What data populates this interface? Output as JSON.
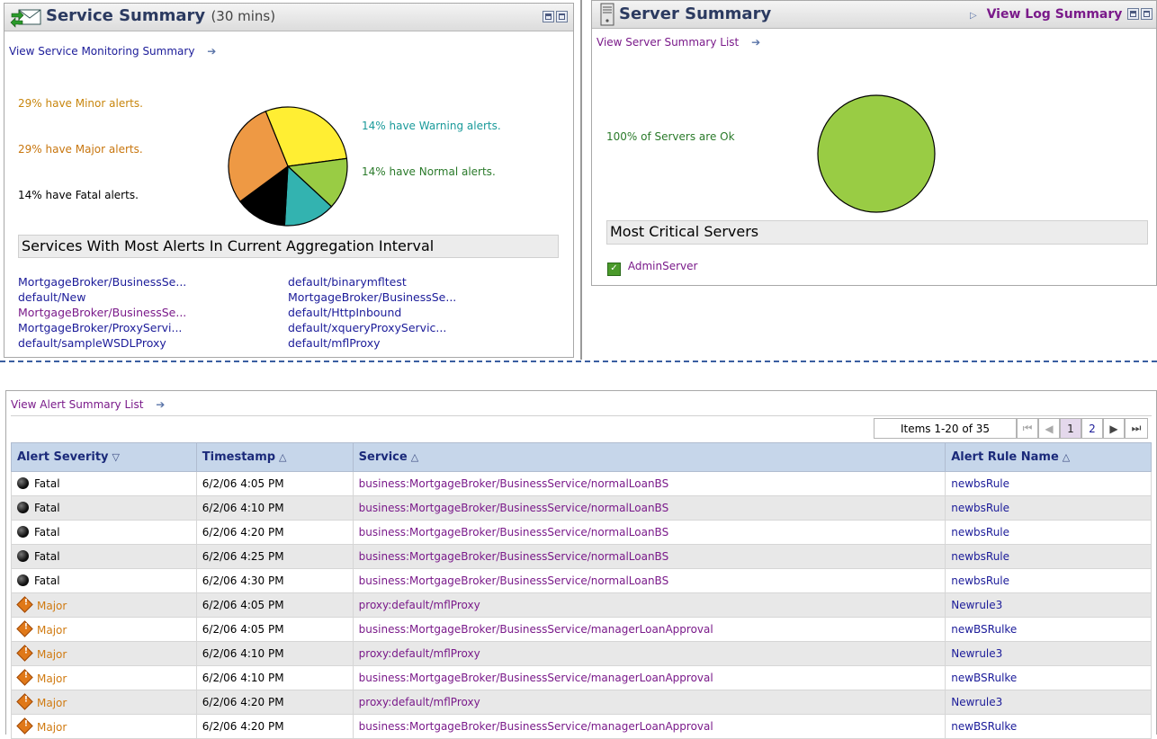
{
  "service_summary": {
    "title": "Service Summary",
    "title_sub": "(30 mins)",
    "monitoring_link": "View Service Monitoring Summary",
    "legend": {
      "minor": "29% have Minor alerts.",
      "major": "29% have Major alerts.",
      "fatal": "14% have Fatal alerts.",
      "warning": "14% have Warning alerts.",
      "normal": "14% have Normal alerts."
    },
    "pie": [
      {
        "label": "Minor",
        "percent": 29,
        "color": "#ffee33"
      },
      {
        "label": "Normal",
        "percent": 14,
        "color": "#99cc44"
      },
      {
        "label": "Warning",
        "percent": 14,
        "color": "#33b3b0"
      },
      {
        "label": "Fatal",
        "percent": 14,
        "color": "#000000"
      },
      {
        "label": "Major",
        "percent": 29,
        "color": "#ee9944"
      }
    ],
    "most_alerts_heading": "Services With Most Alerts In Current Aggregation Interval",
    "services_left": [
      {
        "text": "MortgageBroker/BusinessSe...",
        "visited": false
      },
      {
        "text": "default/New",
        "visited": false
      },
      {
        "text": "MortgageBroker/BusinessSe...",
        "visited": true
      },
      {
        "text": "MortgageBroker/ProxyServi...",
        "visited": false
      },
      {
        "text": "default/sampleWSDLProxy",
        "visited": false
      }
    ],
    "services_right": [
      {
        "text": "default/binarymfltest",
        "visited": false
      },
      {
        "text": "MortgageBroker/BusinessSe...",
        "visited": false
      },
      {
        "text": "default/HttpInbound",
        "visited": false
      },
      {
        "text": "default/xqueryProxyServic...",
        "visited": false
      },
      {
        "text": "default/mflProxy",
        "visited": false
      }
    ]
  },
  "server_summary": {
    "title": "Server Summary",
    "log_link": "View Log Summary",
    "list_link": "View Server Summary List",
    "status_text": "100% of Servers are Ok",
    "pie": [
      {
        "label": "Ok",
        "percent": 100,
        "color": "#99cc44"
      }
    ],
    "critical_heading": "Most Critical Servers",
    "critical_servers": [
      "AdminServer"
    ]
  },
  "alerts": {
    "list_link": "View Alert Summary List",
    "pager": {
      "items": "Items 1-20 of 35",
      "pages": [
        "1",
        "2"
      ],
      "current": "1"
    },
    "columns": {
      "severity": "Alert Severity",
      "timestamp": "Timestamp",
      "service": "Service",
      "rule": "Alert Rule Name"
    },
    "rows": [
      {
        "severity": "Fatal",
        "timestamp": "6/2/06 4:05 PM",
        "service": "business:MortgageBroker/BusinessService/normalLoanBS",
        "rule": "newbsRule"
      },
      {
        "severity": "Fatal",
        "timestamp": "6/2/06 4:10 PM",
        "service": "business:MortgageBroker/BusinessService/normalLoanBS",
        "rule": "newbsRule"
      },
      {
        "severity": "Fatal",
        "timestamp": "6/2/06 4:20 PM",
        "service": "business:MortgageBroker/BusinessService/normalLoanBS",
        "rule": "newbsRule"
      },
      {
        "severity": "Fatal",
        "timestamp": "6/2/06 4:25 PM",
        "service": "business:MortgageBroker/BusinessService/normalLoanBS",
        "rule": "newbsRule"
      },
      {
        "severity": "Fatal",
        "timestamp": "6/2/06 4:30 PM",
        "service": "business:MortgageBroker/BusinessService/normalLoanBS",
        "rule": "newbsRule"
      },
      {
        "severity": "Major",
        "timestamp": "6/2/06 4:05 PM",
        "service": "proxy:default/mflProxy",
        "rule": "Newrule3"
      },
      {
        "severity": "Major",
        "timestamp": "6/2/06 4:05 PM",
        "service": "business:MortgageBroker/BusinessService/managerLoanApproval",
        "rule": "newBSRulke"
      },
      {
        "severity": "Major",
        "timestamp": "6/2/06 4:10 PM",
        "service": "proxy:default/mflProxy",
        "rule": "Newrule3"
      },
      {
        "severity": "Major",
        "timestamp": "6/2/06 4:10 PM",
        "service": "business:MortgageBroker/BusinessService/managerLoanApproval",
        "rule": "newBSRulke"
      },
      {
        "severity": "Major",
        "timestamp": "6/2/06 4:20 PM",
        "service": "proxy:default/mflProxy",
        "rule": "Newrule3"
      },
      {
        "severity": "Major",
        "timestamp": "6/2/06 4:20 PM",
        "service": "business:MortgageBroker/BusinessService/managerLoanApproval",
        "rule": "newBSRulke"
      }
    ]
  }
}
